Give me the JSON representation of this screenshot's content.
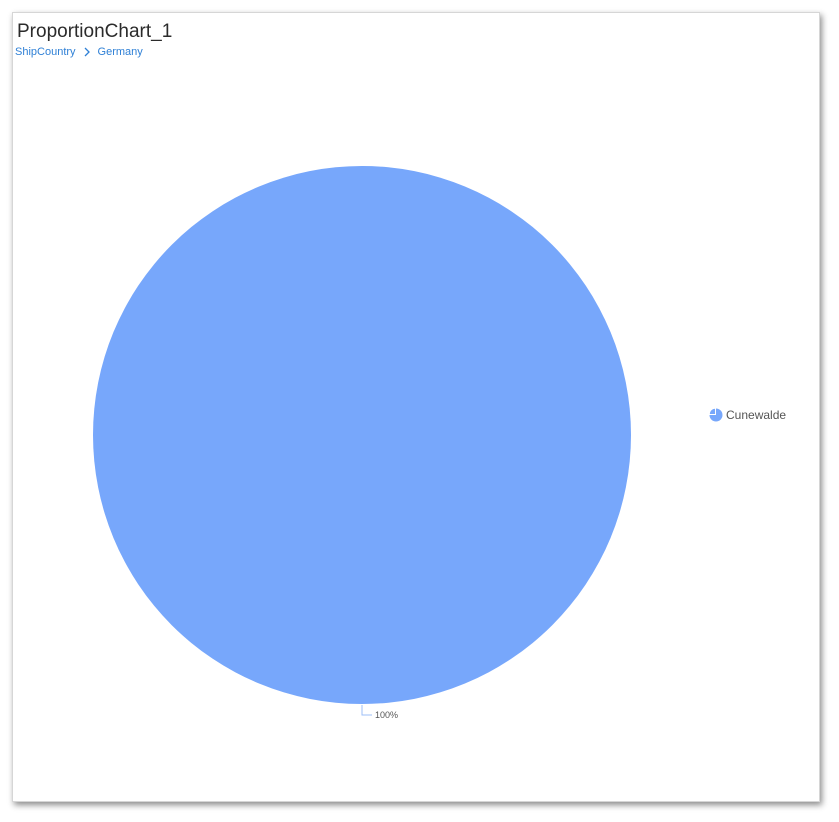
{
  "header": {
    "title": "ProportionChart_1",
    "breadcrumb": [
      "ShipCountry",
      "Germany"
    ]
  },
  "colors": {
    "slice": "#77a7fb",
    "breadcrumb": "#2f80d6",
    "leader": "#9dbff7"
  },
  "icons": {
    "breadcrumb_separator": "chevron-right-icon",
    "legend_marker": "pie-icon"
  },
  "chart_data": {
    "type": "pie",
    "categories": [
      "Cunewalde"
    ],
    "values": [
      100
    ],
    "data_labels": [
      "100%"
    ],
    "legend": [
      "Cunewalde"
    ],
    "legend_position": "right"
  }
}
